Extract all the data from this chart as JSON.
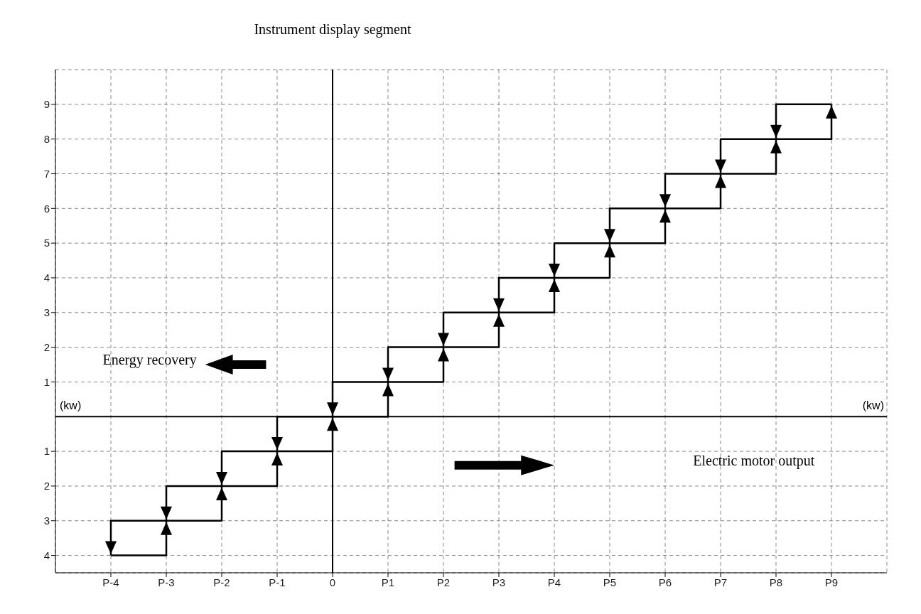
{
  "chart_data": {
    "type": "line",
    "xlabel": "(kw)",
    "ylabel": "Instrument display segment",
    "annotations": [
      "(kw)",
      "Energy recovery",
      "Electric motor output"
    ],
    "categories": [
      "P-4",
      "P-3",
      "P-2",
      "P-1",
      "0",
      "P1",
      "P2",
      "P3",
      "P4",
      "P5",
      "P6",
      "P7",
      "P8",
      "P9"
    ],
    "series": [
      {
        "color": "#000000",
        "x": [
          "P-4",
          "P-3",
          "P-3",
          "P-2",
          "P-2",
          "P-1",
          "P-1",
          "0",
          "0",
          "P1",
          "P1",
          "P2",
          "P2",
          "P3",
          "P3",
          "P4",
          "P4",
          "P5",
          "P5",
          "P6",
          "P6",
          "P7",
          "P7",
          "P8",
          "P8",
          "P9",
          "P9"
        ],
        "values": [
          -4,
          -4,
          -3,
          -3,
          -2,
          -2,
          -1,
          -1,
          0,
          0,
          1,
          1,
          2,
          2,
          3,
          3,
          4,
          4,
          5,
          5,
          6,
          6,
          7,
          7,
          8,
          8,
          9
        ]
      },
      {
        "color": "#000000",
        "x": [
          "P9",
          "P8",
          "P8",
          "P7",
          "P7",
          "P6",
          "P6",
          "P5",
          "P5",
          "P4",
          "P4",
          "P3",
          "P3",
          "P2",
          "P2",
          "P1",
          "P1",
          "0",
          "0",
          "P-1",
          "P-1",
          "P-2",
          "P-2",
          "P-3",
          "P-3",
          "P-4",
          "P-4"
        ],
        "values": [
          9,
          9,
          8,
          8,
          7,
          7,
          6,
          6,
          5,
          5,
          4,
          4,
          3,
          3,
          2,
          2,
          1,
          1,
          0,
          0,
          -1,
          -1,
          -2,
          -2,
          -3,
          -3,
          -4
        ]
      }
    ],
    "ylim": [
      -4.5,
      10
    ],
    "yticks": [
      {
        "value": -4,
        "label": "4"
      },
      {
        "value": -3,
        "label": "3"
      },
      {
        "value": -2,
        "label": "2"
      },
      {
        "value": -1,
        "label": "1"
      },
      1,
      2,
      3,
      4,
      5,
      6,
      7,
      8,
      9
    ],
    "ref_lines": [
      {
        "axis": "x",
        "value": "0",
        "color": "#000000"
      },
      {
        "axis": "y",
        "value": 0,
        "color": "#000000"
      }
    ],
    "grid": true,
    "line_style": "solid"
  }
}
